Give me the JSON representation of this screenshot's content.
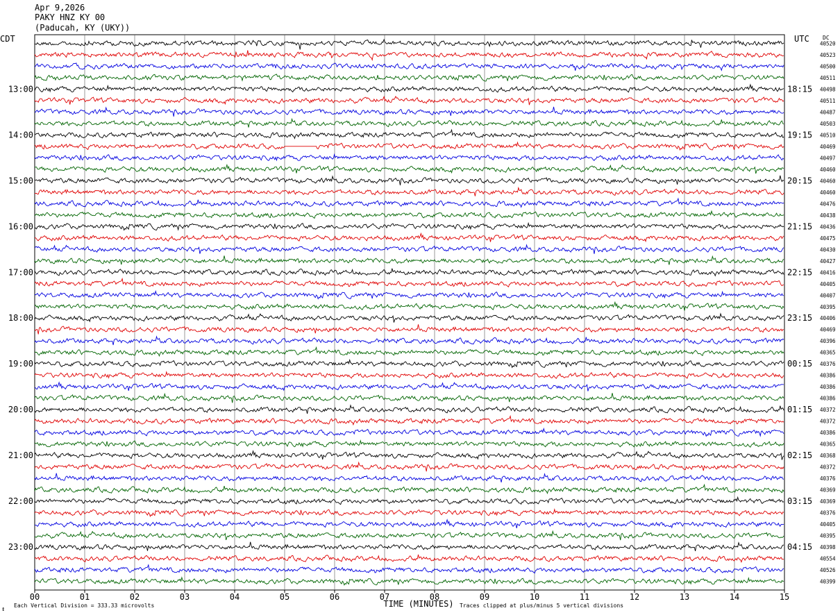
{
  "header": {
    "date": "Apr 9,2026",
    "station": "PAKY HNZ KY 00",
    "location": "(Paducah, KY (UKY))"
  },
  "labels": {
    "left_timezone": "CDT",
    "right_timezone": "UTC",
    "dc_label": "DC"
  },
  "footer": {
    "scale_note": "Each Vertical Division =  333.33 microvolts",
    "clip_note": "Traces clipped at plus/minus 5 vertical divisions"
  },
  "chart_data": {
    "type": "line",
    "subtype": "helicorder",
    "xlabel": "TIME (MINUTES)",
    "x_ticks": [
      "00",
      "01",
      "02",
      "03",
      "04",
      "05",
      "06",
      "07",
      "08",
      "09",
      "10",
      "11",
      "12",
      "13",
      "14",
      "15"
    ],
    "xlim": [
      0,
      15
    ],
    "trace_minutes": 15,
    "trace_count": 48,
    "trace_colors": [
      "#000000",
      "#e00000",
      "#0000e0",
      "#006400"
    ],
    "left_hour_labels": [
      "13:00",
      "14:00",
      "15:00",
      "16:00",
      "17:00",
      "18:00",
      "19:00",
      "20:00",
      "21:00",
      "22:00",
      "23:00"
    ],
    "right_hour_labels": [
      "18:15",
      "19:15",
      "20:15",
      "21:15",
      "22:15",
      "23:15",
      "00:15",
      "01:15",
      "02:15",
      "03:15",
      "04:15"
    ],
    "first_hour_label_row": 4,
    "dc_offsets": [
      40520,
      40523,
      40500,
      40511,
      40498,
      40511,
      40487,
      40503,
      40510,
      40469,
      40497,
      40460,
      40460,
      40460,
      40476,
      40438,
      40436,
      40475,
      40430,
      40427,
      40416,
      40405,
      40407,
      40395,
      40406,
      40469,
      40396,
      40365,
      40376,
      40386,
      40386,
      40386,
      40372,
      40372,
      40386,
      40365,
      40368,
      40372,
      40376,
      40369,
      40369,
      40376,
      40405,
      40395,
      40398,
      40554,
      40526,
      40399
    ],
    "gap": {
      "trace": 9,
      "x_start_min": 5.0,
      "x_end_min": 5.65
    }
  }
}
